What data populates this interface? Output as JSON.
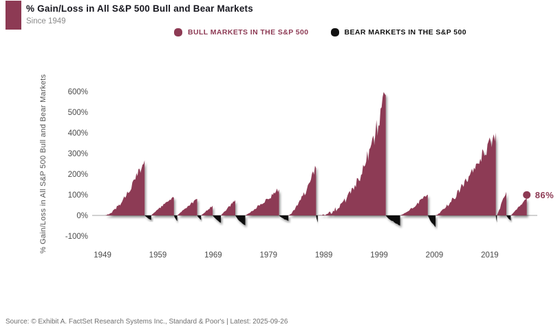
{
  "header": {
    "title": "% Gain/Loss in All S&P 500 Bull and Bear Markets",
    "subtitle": "Since 1949",
    "accent_color": "#8d3a54"
  },
  "legend": [
    {
      "label": "BULL MARKETS IN THE S&P 500",
      "color": "#8d3a54"
    },
    {
      "label": "BEAR MARKETS IN THE S&P 500",
      "color": "#111111"
    }
  ],
  "footer": {
    "source": "Source: © Exhibit A. FactSet Research Systems Inc., Standard & Poor's | Latest: 2025-09-26"
  },
  "chart_data": {
    "type": "area",
    "title": "% Gain/Loss in All S&P 500 Bull and Bear Markets",
    "ylabel": "% Gain/Loss in All S&P 500 Bull and Bear Markets",
    "y_tick_values": [
      600,
      500,
      400,
      300,
      200,
      100,
      0,
      -100
    ],
    "y_tick_labels": [
      "600%",
      "500%",
      "400%",
      "300%",
      "200%",
      "100%",
      "0%",
      "-100%"
    ],
    "x_ticks": [
      1949,
      1959,
      1969,
      1979,
      1989,
      1999,
      2009,
      2019
    ],
    "xlim": [
      1947,
      2027.6
    ],
    "ylim": [
      -150,
      650
    ],
    "grid": false,
    "legend_position": "top-center",
    "colors": {
      "bull": "#8d3a54",
      "bear": "#111111",
      "axis": "#b3b3b3"
    },
    "annotation": {
      "text": "86%",
      "year": 2025.7,
      "value": 86
    },
    "segments": [
      {
        "type": "bull",
        "start": 1949.4,
        "end": 1956.6,
        "change": 267,
        "shape": 1.6
      },
      {
        "type": "bear",
        "start": 1956.6,
        "end": 1957.8,
        "change": -22
      },
      {
        "type": "bull",
        "start": 1957.8,
        "end": 1961.9,
        "change": 86,
        "shape": 0.9
      },
      {
        "type": "bear",
        "start": 1961.9,
        "end": 1962.5,
        "change": -28
      },
      {
        "type": "bull",
        "start": 1962.5,
        "end": 1966.1,
        "change": 80,
        "shape": 1.0
      },
      {
        "type": "bear",
        "start": 1966.1,
        "end": 1966.8,
        "change": -22
      },
      {
        "type": "bull",
        "start": 1966.8,
        "end": 1968.9,
        "change": 48,
        "shape": 1.0
      },
      {
        "type": "bear",
        "start": 1968.9,
        "end": 1970.4,
        "change": -36
      },
      {
        "type": "bull",
        "start": 1970.4,
        "end": 1973.0,
        "change": 74,
        "shape": 1.0
      },
      {
        "type": "bear",
        "start": 1973.0,
        "end": 1974.8,
        "change": -48
      },
      {
        "type": "bull",
        "start": 1974.8,
        "end": 1980.9,
        "change": 126,
        "shape": 1.1
      },
      {
        "type": "bear",
        "start": 1980.9,
        "end": 1982.6,
        "change": -27
      },
      {
        "type": "bull",
        "start": 1982.6,
        "end": 1987.6,
        "change": 229,
        "shape": 1.4
      },
      {
        "type": "bear",
        "start": 1987.6,
        "end": 1987.9,
        "change": -34
      },
      {
        "type": "bull",
        "start": 1987.9,
        "end": 2000.2,
        "change": 582,
        "shape": 2.3
      },
      {
        "type": "bear",
        "start": 2000.2,
        "end": 2002.8,
        "change": -49
      },
      {
        "type": "bull",
        "start": 2002.8,
        "end": 2007.8,
        "change": 101,
        "shape": 1.2
      },
      {
        "type": "bear",
        "start": 2007.8,
        "end": 2009.2,
        "change": -57
      },
      {
        "type": "bull",
        "start": 2009.2,
        "end": 2020.1,
        "change": 401,
        "shape": 1.3
      },
      {
        "type": "bear",
        "start": 2020.1,
        "end": 2020.3,
        "change": -34
      },
      {
        "type": "bull",
        "start": 2020.3,
        "end": 2022.0,
        "change": 114,
        "shape": 1.0
      },
      {
        "type": "bear",
        "start": 2022.0,
        "end": 2022.8,
        "change": -25
      },
      {
        "type": "bull",
        "start": 2022.8,
        "end": 2025.7,
        "change": 86,
        "shape": 1.1
      }
    ]
  }
}
